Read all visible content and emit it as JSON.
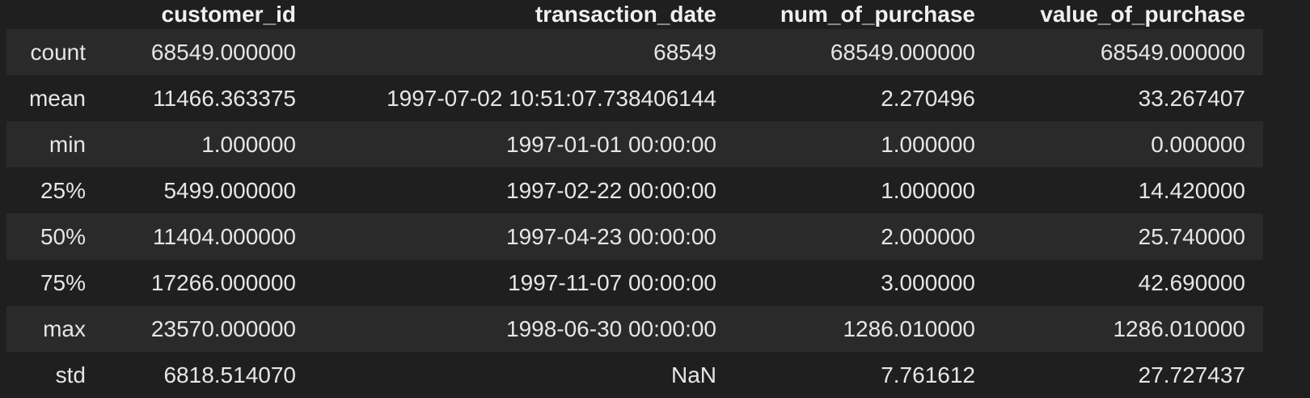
{
  "table": {
    "columns": [
      "",
      "customer_id",
      "transaction_date",
      "num_of_purchase",
      "value_of_purchase"
    ],
    "rows": [
      {
        "label": "count",
        "customer_id": "68549.000000",
        "transaction_date": "68549",
        "num_of_purchase": "68549.000000",
        "value_of_purchase": "68549.000000"
      },
      {
        "label": "mean",
        "customer_id": "11466.363375",
        "transaction_date": "1997-07-02 10:51:07.738406144",
        "num_of_purchase": "2.270496",
        "value_of_purchase": "33.267407"
      },
      {
        "label": "min",
        "customer_id": "1.000000",
        "transaction_date": "1997-01-01 00:00:00",
        "num_of_purchase": "1.000000",
        "value_of_purchase": "0.000000"
      },
      {
        "label": "25%",
        "customer_id": "5499.000000",
        "transaction_date": "1997-02-22 00:00:00",
        "num_of_purchase": "1.000000",
        "value_of_purchase": "14.420000"
      },
      {
        "label": "50%",
        "customer_id": "11404.000000",
        "transaction_date": "1997-04-23 00:00:00",
        "num_of_purchase": "2.000000",
        "value_of_purchase": "25.740000"
      },
      {
        "label": "75%",
        "customer_id": "17266.000000",
        "transaction_date": "1997-11-07 00:00:00",
        "num_of_purchase": "3.000000",
        "value_of_purchase": "42.690000"
      },
      {
        "label": "max",
        "customer_id": "23570.000000",
        "transaction_date": "1998-06-30 00:00:00",
        "num_of_purchase": "1286.010000",
        "value_of_purchase": "1286.010000"
      },
      {
        "label": "std",
        "customer_id": "6818.514070",
        "transaction_date": "NaN",
        "num_of_purchase": "7.761612",
        "value_of_purchase": "27.727437"
      }
    ]
  },
  "colors": {
    "background": "#1f1f1f",
    "row_alt": "#2a2a2a",
    "text": "#e6e6e6"
  }
}
